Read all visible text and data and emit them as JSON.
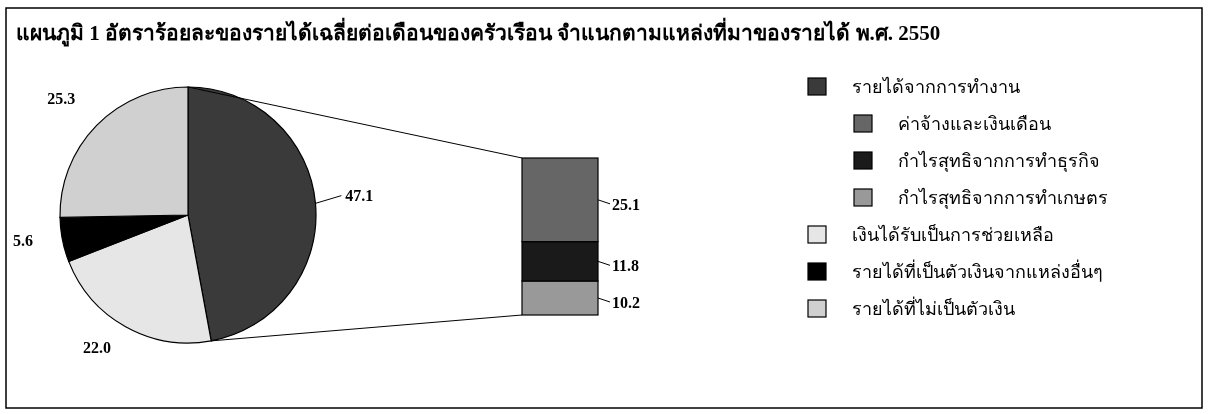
{
  "chart_data": [
    {
      "type": "pie",
      "title": "แผนภูมิ 1 อัตราร้อยละของรายได้เฉลี่ยต่อเดือนของครัวเรือน จำแนกตามแหล่งที่มาของรายได้ พ.ศ. 2550",
      "categories": [
        "รายได้จากการทำงาน",
        "เงินได้รับเป็นการช่วยเหลือ",
        "รายได้ที่เป็นตัวเงินจากแหล่งอื่นๆ",
        "รายได้ที่ไม่เป็นตัวเงิน"
      ],
      "values": [
        47.1,
        22.0,
        5.6,
        25.3
      ],
      "colors": [
        "#3a3a3a",
        "#e6e6e6",
        "#000000",
        "#d0d0d0"
      ],
      "value_labels": [
        "47.1",
        "22.0",
        "5.6",
        "25.3"
      ],
      "legend": "right"
    },
    {
      "type": "bar",
      "stacked": true,
      "categories": [
        null
      ],
      "data_labels": true,
      "legend": "right",
      "series": [
        {
          "name": "กำไรสุทธิจากการทำเกษตร",
          "color": "#999999",
          "values": [
            10.2
          ]
        },
        {
          "name": "กำไรสุทธิจากการทำธุรกิจ",
          "color": "#1a1a1a",
          "values": [
            11.8
          ]
        },
        {
          "name": "ค่าจ้างและเงินเดือน",
          "color": "#666666",
          "values": [
            25.1
          ]
        }
      ]
    }
  ]
}
